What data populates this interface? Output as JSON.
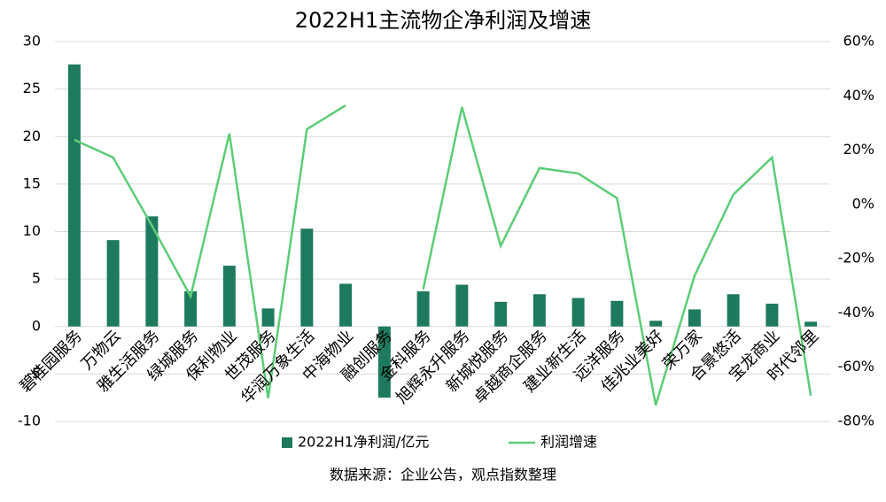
{
  "chart_data": {
    "type": "bar_line",
    "title": "2022H1主流物企净利润及增速",
    "source": "数据来源：企业公告，观点指数整理",
    "categories": [
      "碧桂园服务",
      "万物云",
      "雅生活服务",
      "绿城服务",
      "保利物业",
      "世茂服务",
      "华润万象生活",
      "中海物业",
      "融创服务",
      "金科服务",
      "旭辉永升服务",
      "新城悦服务",
      "卓越商企服务",
      "建业新生活",
      "远洋服务",
      "佳兆业美好",
      "荣万家",
      "合景悠活",
      "宝龙商业",
      "时代邻里"
    ],
    "series": [
      {
        "name": "2022H1净利润/亿元",
        "color": "#1e7a5e",
        "type": "bar",
        "axis": "y",
        "values": [
          27.6,
          9.1,
          11.6,
          3.7,
          6.4,
          1.9,
          10.3,
          4.5,
          -7.5,
          3.7,
          4.4,
          2.6,
          3.4,
          3.0,
          2.7,
          0.6,
          1.8,
          3.4,
          2.4,
          0.5
        ]
      },
      {
        "name": "利润增速",
        "color": "#5ccd76",
        "type": "line",
        "axis": "y2",
        "values": [
          23.8,
          17.3,
          -7.8,
          -33.9,
          26.1,
          -71.4,
          27.7,
          36.5,
          null,
          -31.3,
          35.9,
          -15.3,
          13.4,
          11.4,
          2.3,
          -74,
          -26.4,
          3.6,
          17.3,
          -70.5
        ]
      }
    ],
    "ylim": [
      -10,
      30
    ],
    "yticks": [
      -10,
      -5,
      0,
      5,
      10,
      15,
      20,
      25,
      30
    ],
    "y2lim": [
      -80,
      60
    ],
    "y2ticks": [
      {
        "value": -80,
        "label": "-80%"
      },
      {
        "value": -60,
        "label": "-60%"
      },
      {
        "value": -40,
        "label": "-40%"
      },
      {
        "value": -20,
        "label": "-20%"
      },
      {
        "value": 0,
        "label": "0%"
      },
      {
        "value": 20,
        "label": "20%"
      },
      {
        "value": 40,
        "label": "40%"
      },
      {
        "value": 60,
        "label": "60%"
      }
    ],
    "grid": true,
    "legend": "bottom"
  }
}
